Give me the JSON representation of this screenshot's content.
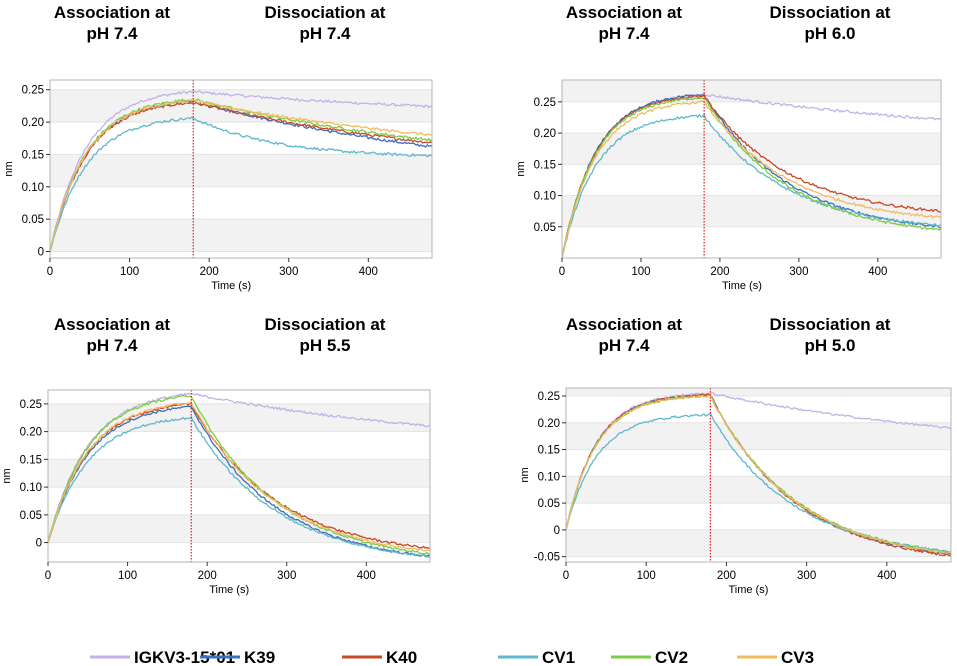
{
  "chart_data": [
    {
      "type": "line",
      "title_left": [
        "Association at",
        "pH 7.4"
      ],
      "title_right": [
        "Dissociation at",
        "pH 7.4"
      ],
      "xlabel": "Time (s)",
      "ylabel": "nm",
      "xlim": [
        0,
        480
      ],
      "ylim": [
        -0.01,
        0.265
      ],
      "xticks": [
        0,
        100,
        200,
        300,
        400
      ],
      "yticks": [
        0,
        0.05,
        0.1,
        0.15,
        0.2,
        0.25
      ],
      "ytick_labels": [
        "0",
        "0.05",
        "0.10",
        "0.15",
        "0.20",
        "0.25"
      ],
      "switch_time": 180,
      "series": [
        {
          "name": "IGKV3-15*01",
          "plateau": 0.247,
          "end": 0.224,
          "tau_assoc": 45
        },
        {
          "name": "K39",
          "plateau": 0.232,
          "end": 0.162,
          "tau_assoc": 45
        },
        {
          "name": "K40",
          "plateau": 0.23,
          "end": 0.168,
          "tau_assoc": 45
        },
        {
          "name": "CV1",
          "plateau": 0.206,
          "end": 0.148,
          "tau_assoc": 45
        },
        {
          "name": "CV2",
          "plateau": 0.235,
          "end": 0.172,
          "tau_assoc": 45
        },
        {
          "name": "CV3",
          "plateau": 0.233,
          "end": 0.18,
          "tau_assoc": 45
        }
      ]
    },
    {
      "type": "line",
      "title_left": [
        "Association at",
        "pH 7.4"
      ],
      "title_right": [
        "Dissociation at",
        "pH 6.0"
      ],
      "xlabel": "Time (s)",
      "ylabel": "nm",
      "xlim": [
        0,
        480
      ],
      "ylim": [
        0,
        0.285
      ],
      "xticks": [
        0,
        100,
        200,
        300,
        400
      ],
      "yticks": [
        0.05,
        0.1,
        0.15,
        0.2,
        0.25
      ],
      "ytick_labels": [
        "0.05",
        "0.10",
        "0.15",
        "0.20",
        "0.25"
      ],
      "switch_time": 180,
      "series": [
        {
          "name": "IGKV3-15*01",
          "plateau": 0.262,
          "end": 0.222,
          "tau_assoc": 42
        },
        {
          "name": "K39",
          "plateau": 0.262,
          "end": 0.05,
          "tau_assoc": 42
        },
        {
          "name": "K40",
          "plateau": 0.26,
          "end": 0.075,
          "tau_assoc": 42
        },
        {
          "name": "CV1",
          "plateau": 0.228,
          "end": 0.052,
          "tau_assoc": 42
        },
        {
          "name": "CV2",
          "plateau": 0.257,
          "end": 0.045,
          "tau_assoc": 42
        },
        {
          "name": "CV3",
          "plateau": 0.25,
          "end": 0.065,
          "tau_assoc": 42
        }
      ]
    },
    {
      "type": "line",
      "title_left": [
        "Association at",
        "pH 7.4"
      ],
      "title_right": [
        "Dissociation at",
        "pH 5.5"
      ],
      "xlabel": "Time (s)",
      "ylabel": "nm",
      "xlim": [
        0,
        480
      ],
      "ylim": [
        -0.035,
        0.275
      ],
      "xticks": [
        0,
        100,
        200,
        300,
        400
      ],
      "yticks": [
        0,
        0.05,
        0.1,
        0.15,
        0.2,
        0.25
      ],
      "ytick_labels": [
        "0",
        "0.05",
        "0.10",
        "0.15",
        "0.20",
        "0.25"
      ],
      "switch_time": 180,
      "series": [
        {
          "name": "IGKV3-15*01",
          "plateau": 0.268,
          "end": 0.21,
          "tau_assoc": 50
        },
        {
          "name": "K39",
          "plateau": 0.245,
          "end": -0.025,
          "tau_assoc": 50
        },
        {
          "name": "K40",
          "plateau": 0.25,
          "end": -0.01,
          "tau_assoc": 50
        },
        {
          "name": "CV1",
          "plateau": 0.225,
          "end": -0.025,
          "tau_assoc": 50
        },
        {
          "name": "CV2",
          "plateau": 0.265,
          "end": -0.02,
          "tau_assoc": 50
        },
        {
          "name": "CV3",
          "plateau": 0.252,
          "end": -0.015,
          "tau_assoc": 50
        }
      ]
    },
    {
      "type": "line",
      "title_left": [
        "Association at",
        "pH 7.4"
      ],
      "title_right": [
        "Dissociation at",
        "pH 5.0"
      ],
      "xlabel": "Time (s)",
      "ylabel": "nm",
      "xlim": [
        0,
        480
      ],
      "ylim": [
        -0.06,
        0.265
      ],
      "xticks": [
        0,
        100,
        200,
        300,
        400
      ],
      "yticks": [
        -0.05,
        0,
        0.05,
        0.1,
        0.15,
        0.2,
        0.25
      ],
      "ytick_labels": [
        "-0.05",
        "0",
        "0.05",
        "0.10",
        "0.15",
        "0.20",
        "0.25"
      ],
      "switch_time": 180,
      "series": [
        {
          "name": "IGKV3-15*01",
          "plateau": 0.255,
          "end": 0.19,
          "tau_assoc": 38
        },
        {
          "name": "K39",
          "plateau": 0.252,
          "end": -0.045,
          "tau_assoc": 38
        },
        {
          "name": "K40",
          "plateau": 0.252,
          "end": -0.048,
          "tau_assoc": 38
        },
        {
          "name": "CV1",
          "plateau": 0.215,
          "end": -0.04,
          "tau_assoc": 38
        },
        {
          "name": "CV2",
          "plateau": 0.25,
          "end": -0.042,
          "tau_assoc": 38
        },
        {
          "name": "CV3",
          "plateau": 0.25,
          "end": -0.044,
          "tau_assoc": 38
        }
      ]
    }
  ],
  "legend": [
    {
      "name": "IGKV3-15*01",
      "color": "#c3b1e8"
    },
    {
      "name": "K39",
      "color": "#3b6fc0"
    },
    {
      "name": "K40",
      "color": "#c8482a"
    },
    {
      "name": "CV1",
      "color": "#5fb8cc"
    },
    {
      "name": "CV2",
      "color": "#7ccc45"
    },
    {
      "name": "CV3",
      "color": "#f1bc60"
    }
  ],
  "marker_color": "#e02020"
}
